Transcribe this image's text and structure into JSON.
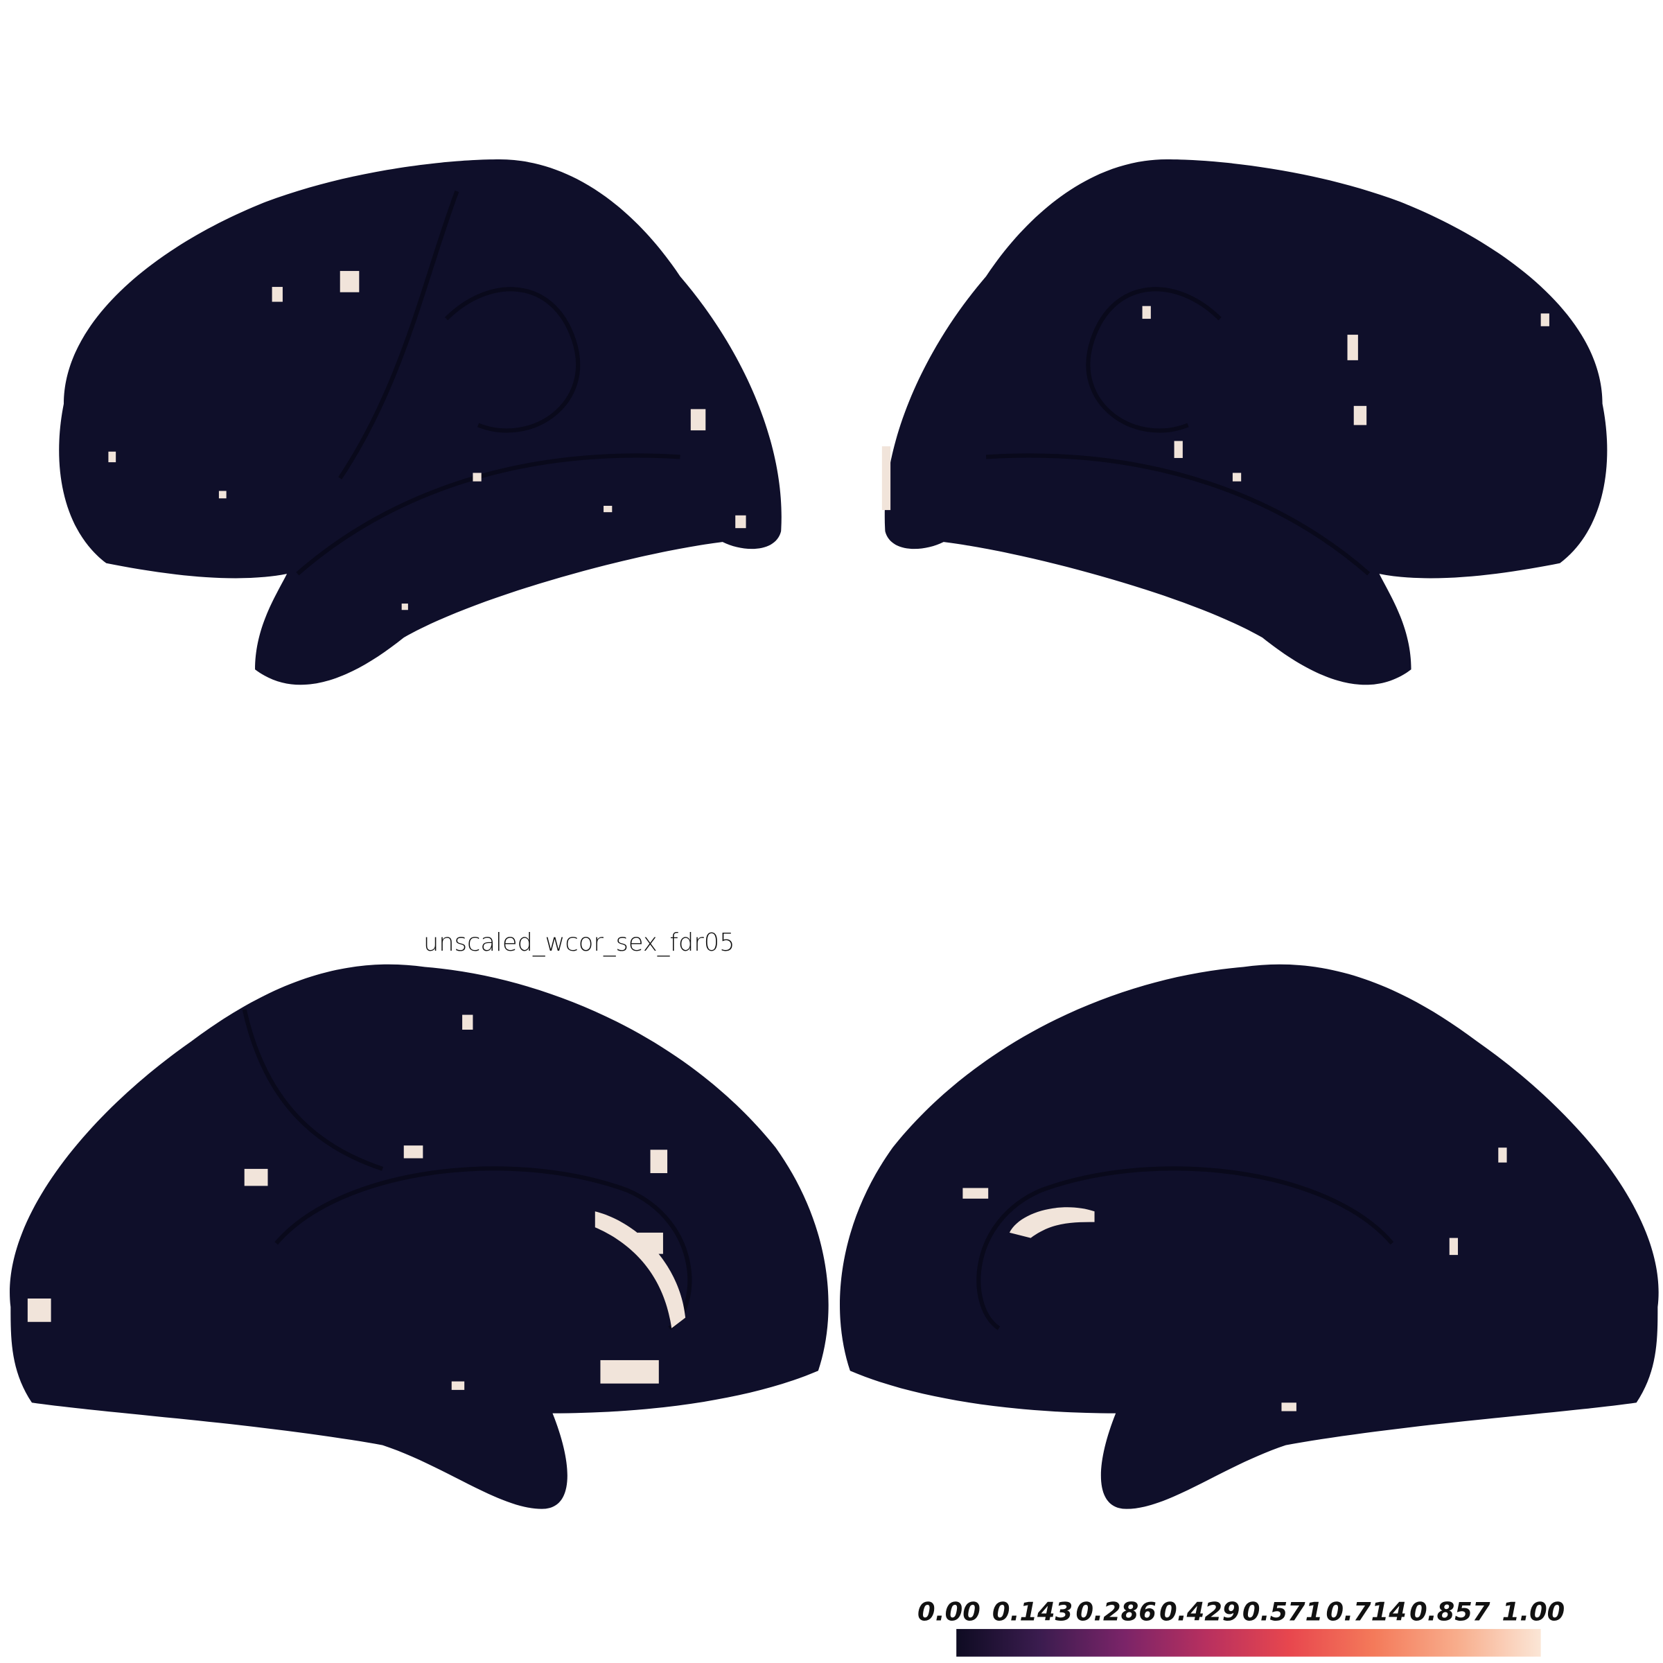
{
  "title": "unscaled_wcor_sex_fdr05",
  "colorbar": {
    "range": [
      0,
      1
    ],
    "ticks": [
      {
        "value": 0,
        "label": "0.00"
      },
      {
        "value": 0.143,
        "label": "0.143"
      },
      {
        "value": 0.286,
        "label": "0.286"
      },
      {
        "value": 0.429,
        "label": "0.429"
      },
      {
        "value": 0.571,
        "label": "0.571"
      },
      {
        "value": 0.714,
        "label": "0.714"
      },
      {
        "value": 0.857,
        "label": "0.857"
      },
      {
        "value": 1,
        "label": "1.00"
      }
    ],
    "colors": [
      "#0e0b22",
      "#3b1c4f",
      "#7a2468",
      "#b8305f",
      "#e8474e",
      "#f47a5a",
      "#f8ad8c",
      "#fbe6d6"
    ]
  }
}
